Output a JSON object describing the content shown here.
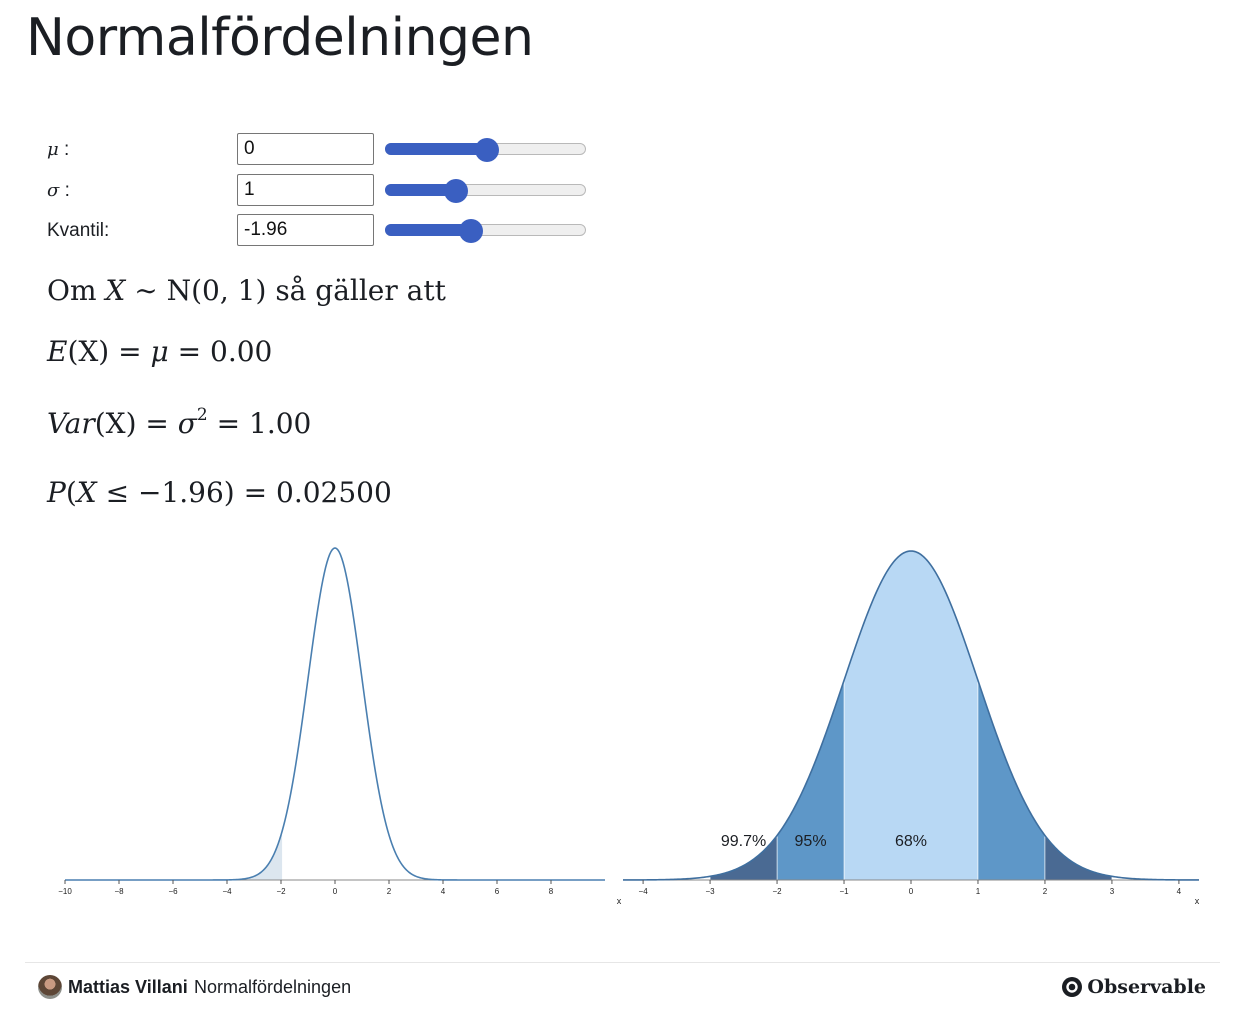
{
  "header": {
    "title": "Normalfördelningen"
  },
  "controls": {
    "mu": {
      "symbol": "μ",
      "suffix": " :",
      "value": "0",
      "fraction": 0.5
    },
    "sigma": {
      "symbol": "σ",
      "suffix": " :",
      "value": "1",
      "fraction": 0.33
    },
    "quantile": {
      "label": "Kvantil:",
      "value": "-1.96",
      "fraction": 0.41
    },
    "accent_color": "#3a5fc1"
  },
  "formulas": {
    "intro": {
      "prefix": "Om",
      "var": "X",
      "dist": "∼ N(0, 1)",
      "suffix": "så gäller att"
    },
    "expectation": {
      "lhs": "E",
      "arg": "(X)",
      "eq1": "=",
      "mu": "μ",
      "eq2": "=",
      "value": "0.00"
    },
    "variance": {
      "lhs": "Var",
      "arg": "(X)",
      "eq1": "=",
      "sigma": "σ",
      "exp": "2",
      "eq2": "=",
      "value": "1.00"
    },
    "probability": {
      "lhs": "P",
      "open": "(",
      "var": "X",
      "rel": "≤ −1.96)",
      "eq": "=",
      "value": "0.02500"
    }
  },
  "chart_data": [
    {
      "type": "area",
      "title": "",
      "xlabel": "",
      "ylabel": "",
      "distribution": {
        "mean": 0,
        "sd": 1
      },
      "xlim": [
        -10,
        10
      ],
      "x_ticks": [
        "−10",
        "−8",
        "−6",
        "−4",
        "−2",
        "0",
        "2",
        "4",
        "6",
        "8"
      ],
      "x_tick_values": [
        -10,
        -8,
        -6,
        -4,
        -2,
        0,
        2,
        4,
        6,
        8
      ],
      "shaded_region": {
        "to": -1.96
      },
      "line_color": "#4a7fb0",
      "shade_color": "#dce6ef"
    },
    {
      "type": "area",
      "title": "",
      "xlabel": "x",
      "ylabel": "",
      "distribution": {
        "mean": 0,
        "sd": 1
      },
      "xlim": [
        -4.3,
        4.3
      ],
      "x_ticks": [
        "−4",
        "−3",
        "−2",
        "−1",
        "0",
        "1",
        "2",
        "3",
        "4"
      ],
      "x_tick_values": [
        -4,
        -3,
        -2,
        -1,
        0,
        1,
        2,
        3,
        4
      ],
      "bands": [
        {
          "from": -1,
          "to": 1,
          "color": "#b8d8f4"
        },
        {
          "from": -2,
          "to": -1,
          "color": "#5e97c8"
        },
        {
          "from": 1,
          "to": 2,
          "color": "#5e97c8"
        },
        {
          "from": -3,
          "to": -2,
          "color": "#4a6a93"
        },
        {
          "from": 2,
          "to": 3,
          "color": "#4a6a93"
        }
      ],
      "annotations": [
        {
          "text": "99.7%",
          "x": -2.5
        },
        {
          "text": "95%",
          "x": -1.5
        },
        {
          "text": "68%",
          "x": 0
        }
      ],
      "line_color": "#3f6f9f"
    }
  ],
  "footer": {
    "author": "Mattias Villani",
    "notebook": "Normalfördelningen",
    "brand": "Observable",
    "brand_icon": "observable-logo-icon"
  }
}
